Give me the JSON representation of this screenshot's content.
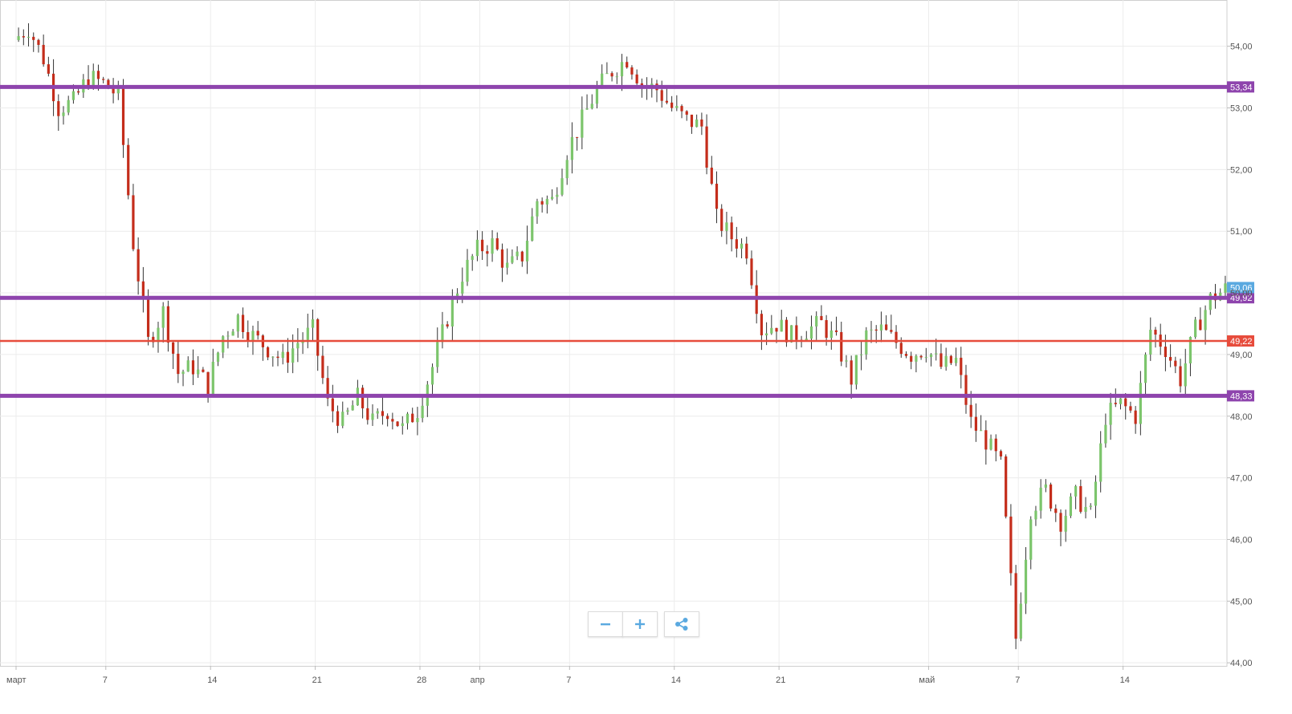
{
  "colors": {
    "up": "#7cc56c",
    "down": "#c42d1b",
    "resistance": "#8e44ad",
    "pivot": "#e74c3c",
    "current": "#5aa9e0",
    "grid": "#ececec",
    "axis_text": "#555555",
    "icon": "#5aa9e0"
  },
  "toolbar": {
    "zoom_out_icon": "minus-icon",
    "zoom_in_icon": "plus-icon",
    "share_icon": "share-icon"
  },
  "chart_data": {
    "type": "candlestick",
    "y_axis": {
      "position": "right",
      "range": [
        43.95,
        54.75
      ],
      "ticks": [
        "44,00",
        "45,00",
        "46,00",
        "47,00",
        "48,00",
        "49,00",
        "50,00",
        "51,00",
        "52,00",
        "53,00",
        "54,00"
      ]
    },
    "x_axis": {
      "ticks": [
        {
          "date": "03-01",
          "label": "март"
        },
        {
          "date": "03-07",
          "label": "7"
        },
        {
          "date": "03-14",
          "label": "14"
        },
        {
          "date": "03-21",
          "label": "21"
        },
        {
          "date": "03-28",
          "label": "28"
        },
        {
          "date": "04-01",
          "label": "апр"
        },
        {
          "date": "04-07",
          "label": "7"
        },
        {
          "date": "04-14",
          "label": "14"
        },
        {
          "date": "04-21",
          "label": "21"
        },
        {
          "date": "05-01",
          "label": "май"
        },
        {
          "date": "05-07",
          "label": "7"
        },
        {
          "date": "05-14",
          "label": "14"
        }
      ]
    },
    "levels": [
      {
        "value": 53.34,
        "label": "53,34",
        "color": "#8e44ad",
        "width": 5
      },
      {
        "value": 49.92,
        "label": "49,92",
        "color": "#8e44ad",
        "width": 5
      },
      {
        "value": 49.22,
        "label": "49,22",
        "color": "#e74c3c",
        "width": 2.5
      },
      {
        "value": 48.33,
        "label": "48,33",
        "color": "#8e44ad",
        "width": 5
      }
    ],
    "current_price": {
      "value": 50.06,
      "label": "50,06"
    },
    "anchors": [
      [
        "03-01",
        54.1
      ],
      [
        "03-02",
        54.3
      ],
      [
        "03-03",
        53.8
      ],
      [
        "03-04",
        53.0
      ],
      [
        "03-05",
        53.1
      ],
      [
        "03-06",
        53.5
      ],
      [
        "03-07",
        53.4
      ],
      [
        "03-08",
        53.2
      ],
      [
        "03-09",
        50.8
      ],
      [
        "03-10",
        49.2
      ],
      [
        "03-11",
        49.7
      ],
      [
        "03-12",
        48.7
      ],
      [
        "03-13",
        48.8
      ],
      [
        "03-14",
        48.5
      ],
      [
        "03-15",
        49.3
      ],
      [
        "03-16",
        49.6
      ],
      [
        "03-17",
        49.3
      ],
      [
        "03-18",
        49.1
      ],
      [
        "03-19",
        48.9
      ],
      [
        "03-20",
        49.2
      ],
      [
        "03-21",
        49.4
      ],
      [
        "03-22",
        48.2
      ],
      [
        "03-23",
        47.9
      ],
      [
        "03-24",
        48.3
      ],
      [
        "03-25",
        47.9
      ],
      [
        "03-26",
        48.1
      ],
      [
        "03-27",
        47.8
      ],
      [
        "03-28",
        48.1
      ],
      [
        "03-29",
        48.8
      ],
      [
        "03-30",
        49.6
      ],
      [
        "03-31",
        50.3
      ],
      [
        "04-01",
        50.7
      ],
      [
        "04-02",
        50.8
      ],
      [
        "04-03",
        50.4
      ],
      [
        "04-04",
        50.6
      ],
      [
        "04-05",
        51.5
      ],
      [
        "04-06",
        51.5
      ],
      [
        "04-07",
        52.3
      ],
      [
        "04-08",
        52.8
      ],
      [
        "04-09",
        53.3
      ],
      [
        "04-10",
        53.6
      ],
      [
        "04-11",
        53.8
      ],
      [
        "04-12",
        53.4
      ],
      [
        "04-13",
        53.3
      ],
      [
        "04-14",
        53.0
      ],
      [
        "04-15",
        52.8
      ],
      [
        "04-16",
        52.7
      ],
      [
        "04-17",
        51.2
      ],
      [
        "04-18",
        50.9
      ],
      [
        "04-19",
        50.7
      ],
      [
        "04-20",
        49.4
      ],
      [
        "04-21",
        49.5
      ],
      [
        "04-22",
        49.3
      ],
      [
        "04-23",
        49.4
      ],
      [
        "04-24",
        49.5
      ],
      [
        "04-25",
        49.2
      ],
      [
        "04-26",
        48.6
      ],
      [
        "04-27",
        49.3
      ],
      [
        "04-28",
        49.4
      ],
      [
        "04-29",
        49.2
      ],
      [
        "04-30",
        49.0
      ],
      [
        "05-01",
        49.1
      ],
      [
        "05-02",
        48.8
      ],
      [
        "05-03",
        48.9
      ],
      [
        "05-04",
        47.9
      ],
      [
        "05-05",
        47.6
      ],
      [
        "05-06",
        47.2
      ],
      [
        "05-07",
        44.4
      ],
      [
        "05-08",
        46.5
      ],
      [
        "05-09",
        46.8
      ],
      [
        "05-10",
        46.3
      ],
      [
        "05-11",
        46.7
      ],
      [
        "05-12",
        46.4
      ],
      [
        "05-13",
        48.0
      ],
      [
        "05-14",
        48.2
      ],
      [
        "05-15",
        48.0
      ],
      [
        "05-16",
        49.4
      ],
      [
        "05-17",
        49.1
      ],
      [
        "05-18",
        48.6
      ],
      [
        "05-19",
        49.4
      ],
      [
        "05-20",
        49.9
      ],
      [
        "05-21",
        50.06
      ]
    ]
  }
}
